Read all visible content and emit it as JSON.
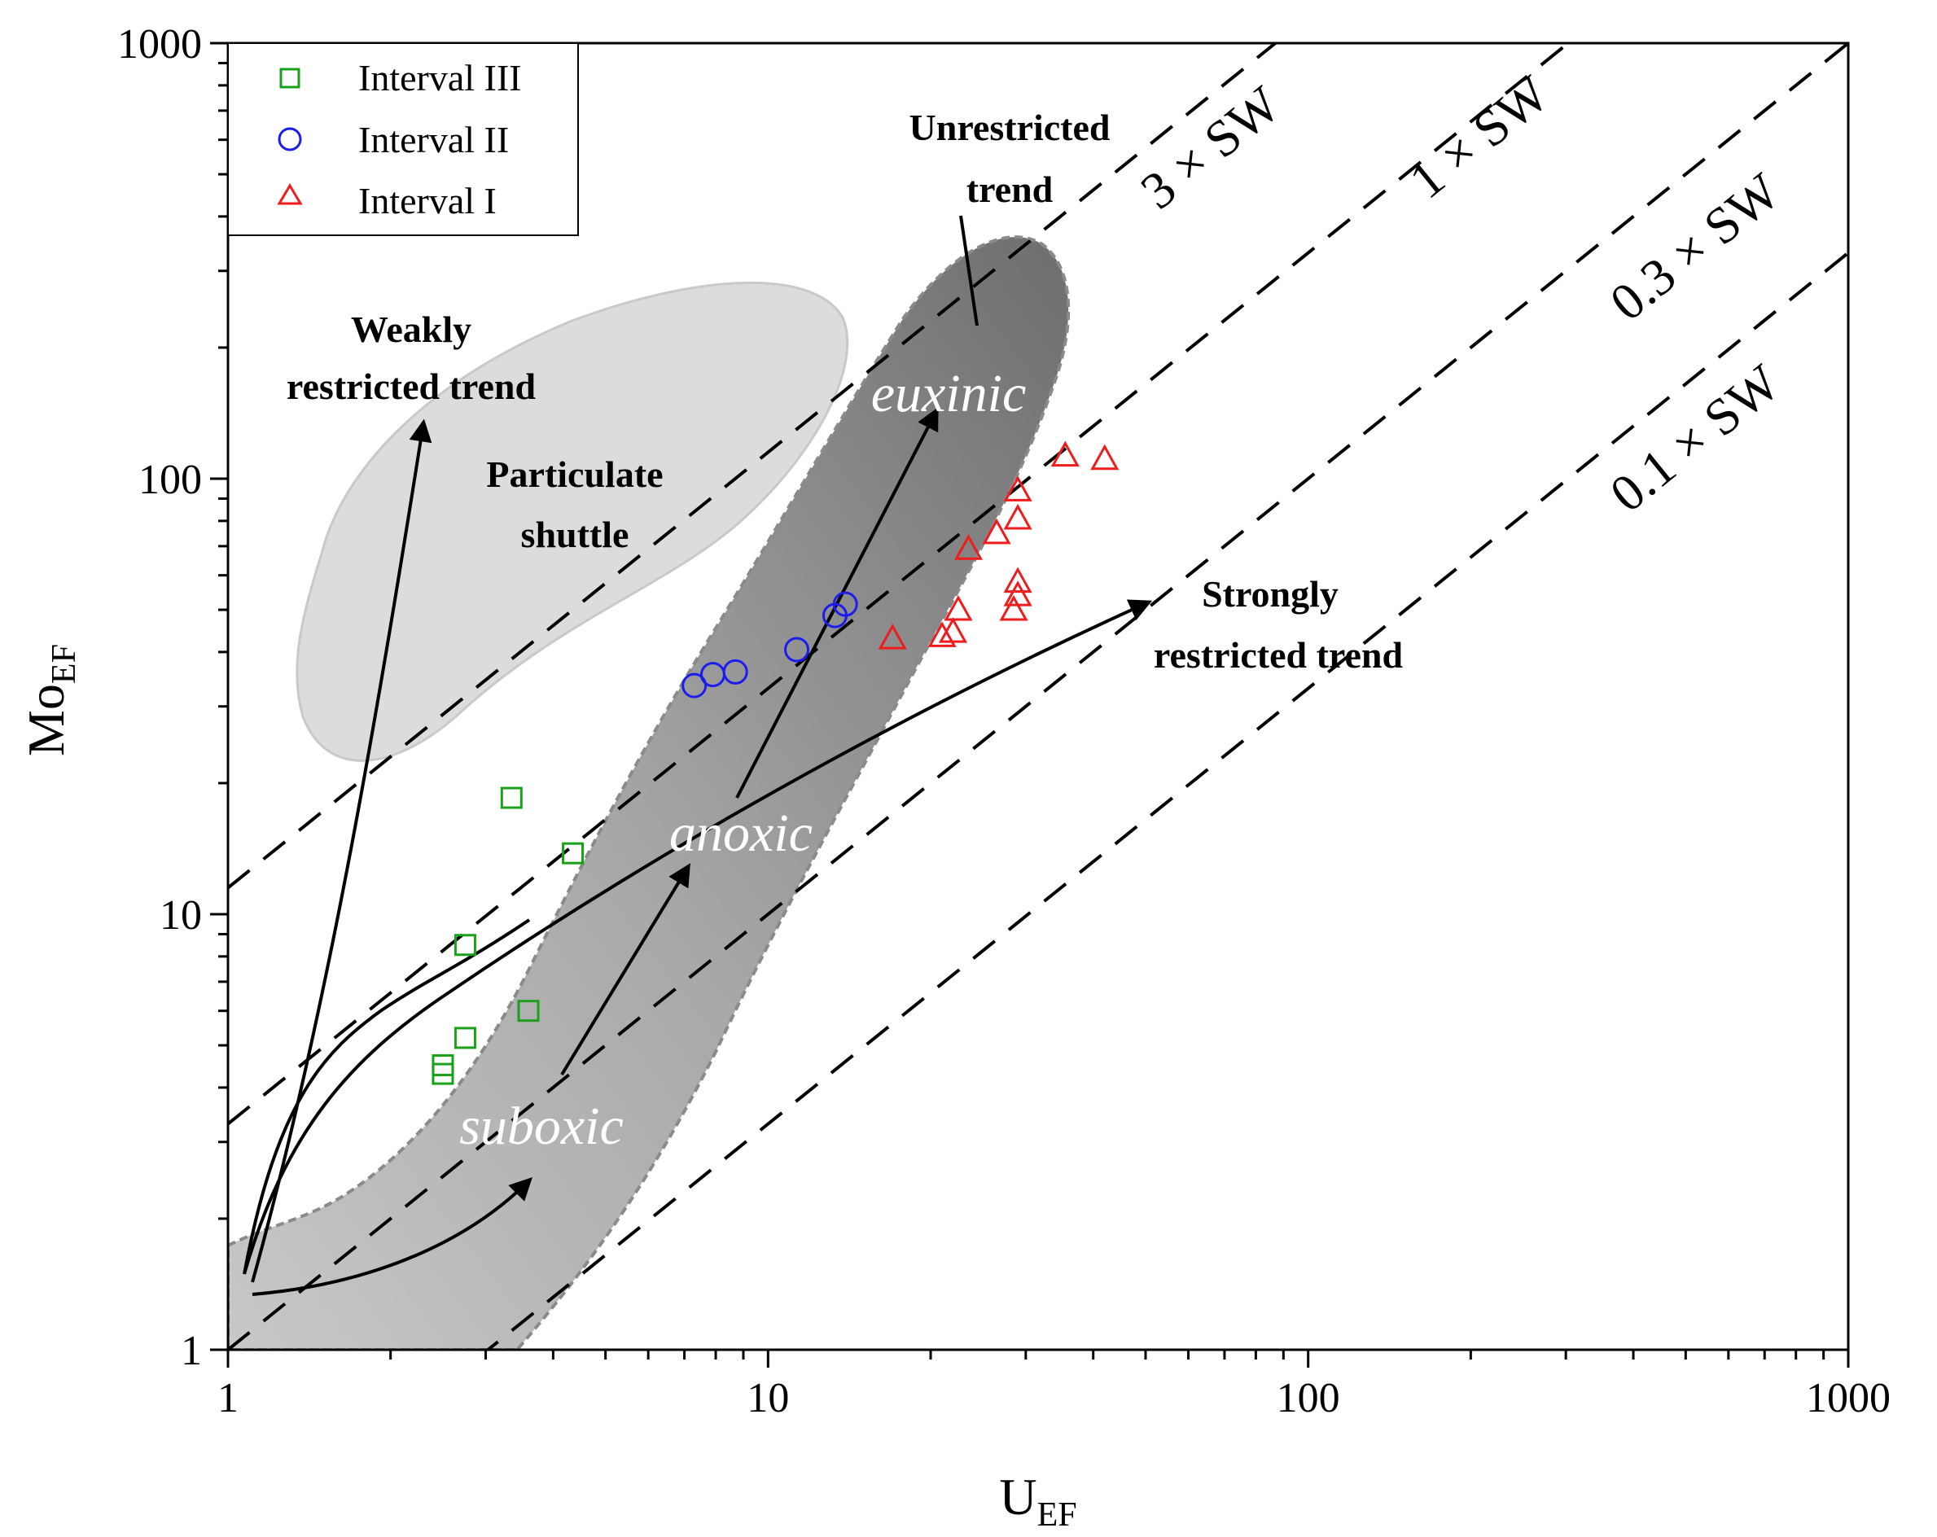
{
  "chart_data": {
    "type": "scatter",
    "x_scale": "log",
    "y_scale": "log",
    "xlim": [
      1,
      1000
    ],
    "ylim": [
      1,
      1000
    ],
    "xlabel": {
      "main": "U",
      "sub": "EF"
    },
    "ylabel": {
      "main": "Mo",
      "sub": "EF"
    },
    "x_ticks": [
      "1",
      "10",
      "100",
      "1000"
    ],
    "y_ticks": [
      "1",
      "10",
      "100",
      "1000"
    ],
    "grid": false,
    "legend_position": "top-left",
    "series": [
      {
        "name": "Interval III",
        "marker": "square",
        "color": "#1aa01a",
        "points": [
          [
            2.5,
            4.5
          ],
          [
            2.5,
            4.3
          ],
          [
            2.75,
            5.2
          ],
          [
            2.75,
            8.5
          ],
          [
            3.6,
            6.0
          ],
          [
            3.35,
            18.5
          ],
          [
            4.35,
            13.8
          ]
        ]
      },
      {
        "name": "Interval II",
        "marker": "circle",
        "color": "#1c1cee",
        "points": [
          [
            7.3,
            33.5
          ],
          [
            7.9,
            35.5
          ],
          [
            8.7,
            36.0
          ],
          [
            11.3,
            40.5
          ],
          [
            13.3,
            48.5
          ],
          [
            13.9,
            51.5
          ]
        ]
      },
      {
        "name": "Interval I",
        "marker": "triangle",
        "color": "#ee1c1c",
        "points": [
          [
            17.0,
            43.0
          ],
          [
            21.0,
            43.5
          ],
          [
            22.0,
            44.5
          ],
          [
            22.5,
            50.0
          ],
          [
            23.5,
            69.0
          ],
          [
            26.5,
            75.0
          ],
          [
            28.5,
            50.0
          ],
          [
            29.0,
            54.0
          ],
          [
            29.0,
            58.0
          ],
          [
            29.0,
            81.0
          ],
          [
            29.0,
            94.0
          ],
          [
            35.5,
            113.0
          ],
          [
            42.0,
            111.0
          ]
        ]
      }
    ],
    "seawater_lines": [
      {
        "label": "3 × SW",
        "ratio": 11.5
      },
      {
        "label": "1 × SW",
        "ratio": 3.3
      },
      {
        "label": "0.3 × SW",
        "ratio": 1.0
      },
      {
        "label": "0.1 × SW",
        "ratio": 0.33
      }
    ],
    "annotations": {
      "unrestricted": "Unrestricted trend",
      "unrestricted_line1": "Unrestricted",
      "unrestricted_line2": "trend",
      "weakly_line1": "Weakly",
      "weakly_line2": "restricted trend",
      "particulate_line1": "Particulate",
      "particulate_line2": "shuttle",
      "strongly_line1": "Strongly",
      "strongly_line2": "restricted trend",
      "euxinic": "euxinic",
      "anoxic": "anoxic",
      "suboxic": "suboxic"
    },
    "colors": {
      "particulate_shuttle_fill": "#dcdcdc",
      "redox_field_dark": "#7a7a7a",
      "redox_field_light": "#bdbdbd"
    }
  }
}
